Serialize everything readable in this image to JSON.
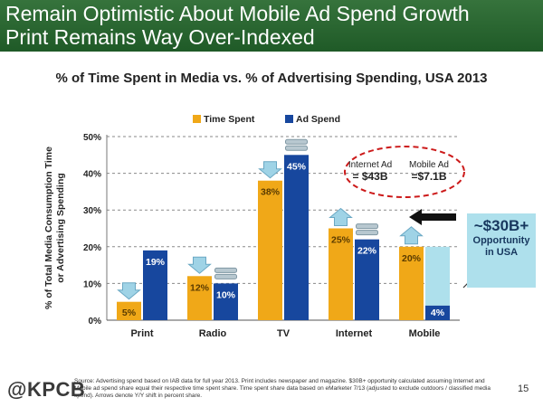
{
  "header": {
    "title_line1": "Remain Optimistic About Mobile Ad Spend Growth",
    "title_line2": "Print Remains Way Over-Indexed"
  },
  "callout": {
    "value": "~$30B+",
    "line1": "Opportunity",
    "line2": "in USA"
  },
  "footer": {
    "logo": "@KPCB",
    "source": "Source: Advertising spend based on IAB data for full year 2013. Print includes newspaper and magazine. $30B+ opportunity calculated assuming Internet and Mobile ad spend share equal their respective time spent share. Time spent share data based on eMarketer 7/13 (adjusted to exclude outdoors / classified media spend). Arrows denote Y/Y shift in percent share.",
    "page": "15"
  },
  "chart_data": {
    "type": "bar",
    "title": "% of Time Spent in Media vs. % of Advertising Spending, USA 2013",
    "ylabel": "% of Total Media Consumption Time or Advertising Spending",
    "categories": [
      "Print",
      "Radio",
      "TV",
      "Internet",
      "Mobile"
    ],
    "series": [
      {
        "name": "Time Spent",
        "values": [
          5,
          12,
          38,
          25,
          20
        ],
        "labels": [
          "5%",
          "12%",
          "38%",
          "25%",
          "20%"
        ],
        "color": "#f0a818"
      },
      {
        "name": "Ad Spend",
        "values": [
          19,
          10,
          45,
          22,
          4
        ],
        "labels": [
          "19%",
          "10%",
          "45%",
          "22%",
          "4%"
        ],
        "color": "#17479e"
      }
    ],
    "yticks": [
      "0%",
      "10%",
      "20%",
      "30%",
      "40%",
      "50%"
    ],
    "ylim": [
      0,
      50
    ],
    "grid": true,
    "legend": "top",
    "annotations": {
      "internet_ad": {
        "label": "Internet Ad",
        "value": "= $43B"
      },
      "mobile_ad": {
        "label": "Mobile Ad",
        "value": "=$7.1B"
      }
    },
    "arrows": {
      "Time Spent": [
        "down",
        "down",
        "down",
        "up",
        "up"
      ],
      "Ad Spend": [
        "none",
        "flat",
        "flat",
        "flat",
        "up"
      ]
    },
    "opportunity_gap": {
      "category": "Mobile",
      "from": 4,
      "to": 20
    }
  }
}
